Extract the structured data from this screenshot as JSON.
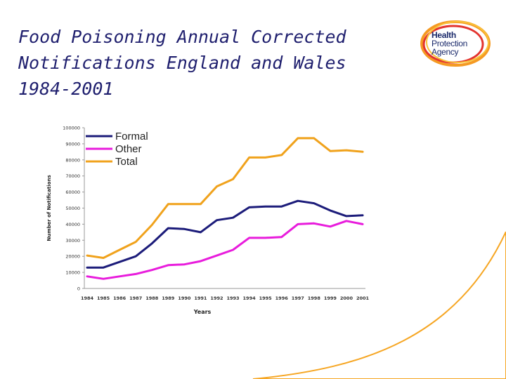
{
  "slide": {
    "title_lines": [
      "Food Poisoning Annual Corrected",
      "Notifications England and Wales",
      "1984-2001"
    ]
  },
  "logo": {
    "lines": [
      "Health",
      "Protection",
      "Agency"
    ],
    "colors": {
      "orange": "#f59a23",
      "red": "#e3342f",
      "yellow": "#f8c33a",
      "navy": "#1b2a6b"
    }
  },
  "colors": {
    "swoosh": "#f6a623"
  },
  "chart_data": {
    "type": "line",
    "title": "",
    "xlabel": "Years",
    "ylabel": "Number of Notifications",
    "ylim": [
      0,
      100000
    ],
    "yticks": [
      "0",
      "10000",
      "20000",
      "30000",
      "40000",
      "50000",
      "60000",
      "70000",
      "80000",
      "90000",
      "100000"
    ],
    "categories": [
      "1984",
      "1985",
      "1986",
      "1987",
      "1988",
      "1989",
      "1990",
      "1991",
      "1992",
      "1993",
      "1994",
      "1995",
      "1996",
      "1997",
      "1998",
      "1999",
      "2000",
      "2001"
    ],
    "legend_position": "top-left",
    "series": [
      {
        "name": "Formal",
        "color": "#1c1c7a",
        "values": [
          13000,
          13000,
          16500,
          20000,
          28000,
          37500,
          37000,
          35000,
          42500,
          44000,
          50500,
          51000,
          51000,
          54500,
          53000,
          48500,
          45000,
          45500
        ]
      },
      {
        "name": "Other",
        "color": "#e81cdc",
        "values": [
          7500,
          6000,
          7500,
          9000,
          11500,
          14500,
          15000,
          17000,
          20500,
          24000,
          31500,
          31500,
          32000,
          40000,
          40500,
          38500,
          42000,
          40000
        ]
      },
      {
        "name": "Total",
        "color": "#f0a21c",
        "values": [
          20500,
          19000,
          24000,
          29000,
          39500,
          52500,
          52500,
          52500,
          63500,
          68000,
          81500,
          81500,
          83000,
          93500,
          93500,
          85500,
          86000,
          85000
        ]
      }
    ]
  }
}
